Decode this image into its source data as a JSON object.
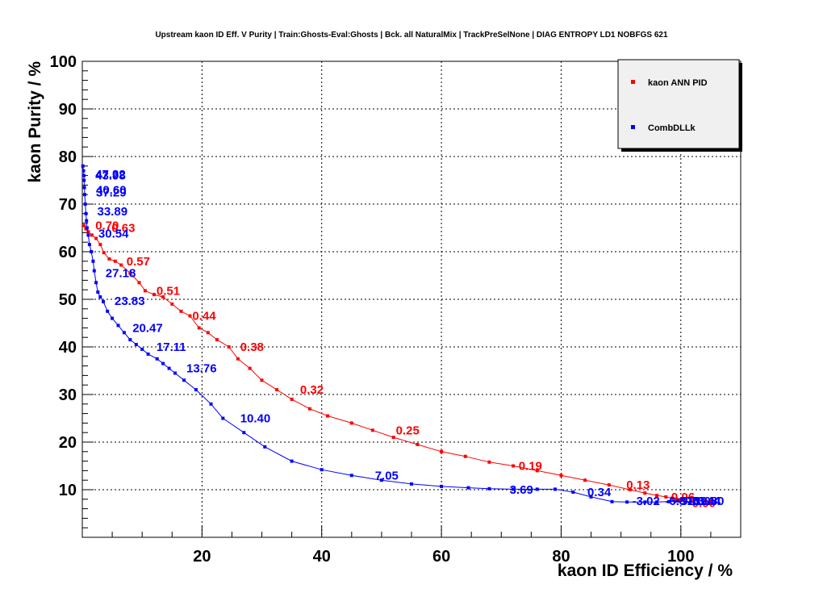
{
  "chart_data": {
    "type": "line",
    "title": "Upstream kaon ID Eff. V Purity | Train:Ghosts-Eval:Ghosts | Bck. all NaturalMix | TrackPreSelNone | DIAG ENTROPY LD1 NOBFGS 621",
    "xlabel": "kaon ID Efficiency / %",
    "ylabel": "kaon Purity / %",
    "xlim": [
      0,
      110
    ],
    "ylim": [
      0,
      100
    ],
    "x_ticks": [
      20,
      40,
      60,
      80,
      100
    ],
    "y_ticks": [
      10,
      20,
      30,
      40,
      50,
      60,
      70,
      80,
      90,
      100
    ],
    "grid": true,
    "legend_position": "top-right",
    "series": [
      {
        "name": "kaon ANN PID",
        "color": "#ff0000",
        "points": [
          [
            0.3,
            65.5
          ],
          [
            0.6,
            64.8
          ],
          [
            1.0,
            64.2
          ],
          [
            1.6,
            63.5
          ],
          [
            2.3,
            62.8
          ],
          [
            3.0,
            61.5
          ],
          [
            3.6,
            59.8
          ],
          [
            4.5,
            58.5
          ],
          [
            5.5,
            58.0
          ],
          [
            6.5,
            57.2
          ],
          [
            8.0,
            55.5
          ],
          [
            9.5,
            53.5
          ],
          [
            10.5,
            51.8
          ],
          [
            12.0,
            51.0
          ],
          [
            13.5,
            50.5
          ],
          [
            15.0,
            49.0
          ],
          [
            16.5,
            47.5
          ],
          [
            18.0,
            46.5
          ],
          [
            19.5,
            44.0
          ],
          [
            21.0,
            43.0
          ],
          [
            22.5,
            41.5
          ],
          [
            24.5,
            40.0
          ],
          [
            26.0,
            37.5
          ],
          [
            28.0,
            35.5
          ],
          [
            30.0,
            33.0
          ],
          [
            32.5,
            31.0
          ],
          [
            35.0,
            29.0
          ],
          [
            38.0,
            27.0
          ],
          [
            41.0,
            25.5
          ],
          [
            45.0,
            24.0
          ],
          [
            48.5,
            22.5
          ],
          [
            52.0,
            21.0
          ],
          [
            56.0,
            19.5
          ],
          [
            60.0,
            18.0
          ],
          [
            64.0,
            17.0
          ],
          [
            68.0,
            15.8
          ],
          [
            72.0,
            15.0
          ],
          [
            76.0,
            14.0
          ],
          [
            80.0,
            13.0
          ],
          [
            84.0,
            12.0
          ],
          [
            88.0,
            11.0
          ],
          [
            91.5,
            10.0
          ],
          [
            94.0,
            9.3
          ],
          [
            96.0,
            8.8
          ],
          [
            97.5,
            8.5
          ],
          [
            98.5,
            8.2
          ],
          [
            99.2,
            8.0
          ],
          [
            99.6,
            7.9
          ],
          [
            99.9,
            7.8
          ],
          [
            100.0,
            7.8
          ]
        ],
        "labels": [
          {
            "text": "0.70",
            "x": 0.3,
            "y": 65.5
          },
          {
            "text": "0.63",
            "x": 3.0,
            "y": 65.0
          },
          {
            "text": "0.57",
            "x": 5.5,
            "y": 58.0
          },
          {
            "text": "0.51",
            "x": 10.5,
            "y": 51.8
          },
          {
            "text": "0.44",
            "x": 16.5,
            "y": 46.5
          },
          {
            "text": "0.38",
            "x": 24.5,
            "y": 40.0
          },
          {
            "text": "0.32",
            "x": 34.5,
            "y": 31.0
          },
          {
            "text": "0.25",
            "x": 50.5,
            "y": 22.5
          },
          {
            "text": "0.19",
            "x": 71.0,
            "y": 15.0
          },
          {
            "text": "0.13",
            "x": 89.0,
            "y": 11.0
          },
          {
            "text": "0.06",
            "x": 96.5,
            "y": 8.5
          },
          {
            "text": "0.00",
            "x": 100.0,
            "y": 7.2
          }
        ]
      },
      {
        "name": "CombDLLk",
        "color": "#0000ff",
        "points": [
          [
            0.1,
            78.0
          ],
          [
            0.2,
            77.0
          ],
          [
            0.25,
            76.0
          ],
          [
            0.3,
            75.0
          ],
          [
            0.35,
            73.5
          ],
          [
            0.4,
            72.0
          ],
          [
            0.5,
            70.0
          ],
          [
            0.6,
            68.0
          ],
          [
            0.7,
            66.5
          ],
          [
            0.8,
            65.0
          ],
          [
            1.0,
            63.5
          ],
          [
            1.2,
            61.5
          ],
          [
            1.5,
            60.0
          ],
          [
            1.8,
            58.0
          ],
          [
            2.0,
            56.0
          ],
          [
            2.3,
            53.5
          ],
          [
            2.6,
            51.5
          ],
          [
            3.0,
            50.5
          ],
          [
            3.5,
            49.5
          ],
          [
            4.2,
            47.5
          ],
          [
            5.0,
            46.0
          ],
          [
            6.0,
            44.5
          ],
          [
            7.0,
            43.0
          ],
          [
            8.0,
            41.5
          ],
          [
            9.0,
            40.5
          ],
          [
            10.0,
            39.5
          ],
          [
            11.0,
            38.5
          ],
          [
            12.5,
            37.5
          ],
          [
            13.5,
            36.5
          ],
          [
            14.5,
            35.5
          ],
          [
            15.5,
            34.5
          ],
          [
            17.0,
            33.0
          ],
          [
            19.0,
            31.0
          ],
          [
            21.5,
            28.0
          ],
          [
            23.5,
            25.0
          ],
          [
            27.0,
            22.0
          ],
          [
            30.5,
            19.0
          ],
          [
            35.0,
            16.0
          ],
          [
            40.0,
            14.2
          ],
          [
            45.0,
            13.0
          ],
          [
            50.0,
            12.0
          ],
          [
            55.0,
            11.2
          ],
          [
            60.0,
            10.7
          ],
          [
            64.5,
            10.4
          ],
          [
            68.0,
            10.2
          ],
          [
            72.0,
            10.1
          ],
          [
            76.0,
            10.1
          ],
          [
            79.0,
            10.1
          ],
          [
            82.0,
            9.5
          ],
          [
            85.0,
            8.5
          ],
          [
            88.5,
            7.5
          ],
          [
            91.0,
            7.4
          ],
          [
            94.0,
            7.4
          ],
          [
            96.0,
            7.4
          ],
          [
            98.0,
            7.5
          ],
          [
            99.0,
            7.6
          ],
          [
            99.5,
            7.7
          ],
          [
            100.0,
            7.8
          ]
        ],
        "labels": [
          {
            "text": "47.32",
            "x": 0.3,
            "y": 76.3
          },
          {
            "text": "43.98",
            "x": 0.3,
            "y": 76.0
          },
          {
            "text": "40.60",
            "x": 0.4,
            "y": 73.0
          },
          {
            "text": "37.29",
            "x": 0.4,
            "y": 72.5
          },
          {
            "text": "33.89",
            "x": 0.6,
            "y": 68.5
          },
          {
            "text": "30.54",
            "x": 0.8,
            "y": 63.8
          },
          {
            "text": "27.18",
            "x": 2.0,
            "y": 55.5
          },
          {
            "text": "23.83",
            "x": 3.5,
            "y": 49.7
          },
          {
            "text": "20.47",
            "x": 6.5,
            "y": 44.0
          },
          {
            "text": "17.11",
            "x": 10.5,
            "y": 40.0
          },
          {
            "text": "13.76",
            "x": 15.5,
            "y": 35.5
          },
          {
            "text": "10.40",
            "x": 24.5,
            "y": 25.0
          },
          {
            "text": "7.05",
            "x": 47.0,
            "y": 13.0
          },
          {
            "text": "3.69",
            "x": 69.5,
            "y": 10.0
          },
          {
            "text": "0.34",
            "x": 82.5,
            "y": 9.5
          },
          {
            "text": "-3.02",
            "x": 90.0,
            "y": 7.6
          },
          {
            "text": "-6.37",
            "x": 95.5,
            "y": 7.6
          },
          {
            "text": "-9.73",
            "x": 97.5,
            "y": 7.6
          },
          {
            "text": "-13.08",
            "x": 98.5,
            "y": 7.6
          },
          {
            "text": "-16.44",
            "x": 99.0,
            "y": 7.6
          },
          {
            "text": "-19.80",
            "x": 99.6,
            "y": 7.6
          }
        ]
      }
    ]
  }
}
